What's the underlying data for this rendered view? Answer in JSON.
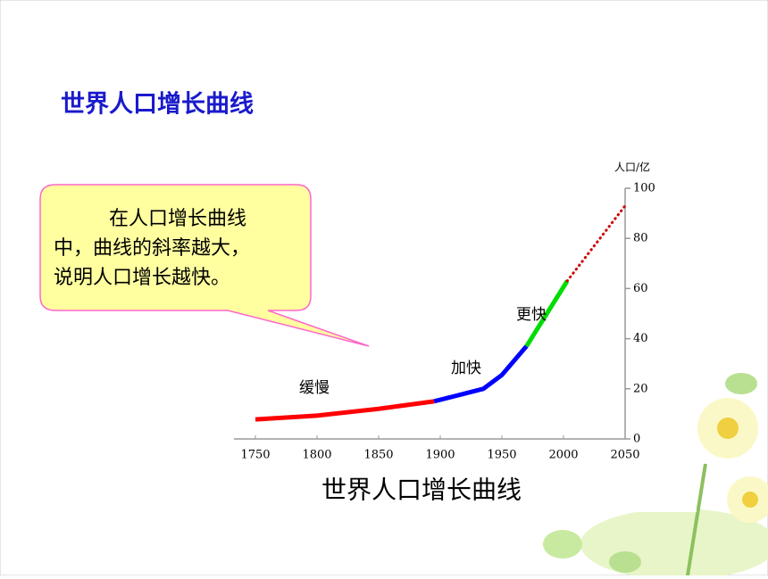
{
  "slide_title": "世界人口增长曲线",
  "callout": {
    "lines": [
      "在人口增长曲线",
      "中，曲线的斜率越大，",
      "说明人口增长越快。"
    ]
  },
  "chart_data": {
    "type": "line",
    "title": "世界人口增长曲线",
    "y_label": "人口/亿",
    "x": [
      1750,
      1800,
      1850,
      1895,
      1935,
      1950,
      1970,
      2003,
      2050
    ],
    "series": [
      {
        "name": "缓慢",
        "color": "#ff0000",
        "values": [
          7.8,
          9.3,
          12,
          15,
          null,
          null,
          null,
          null,
          null
        ]
      },
      {
        "name": "加快",
        "color": "#0000ff",
        "values": [
          null,
          null,
          null,
          15,
          20,
          25.5,
          37,
          null,
          null
        ]
      },
      {
        "name": "更快",
        "color": "#00dd00",
        "values": [
          null,
          null,
          null,
          null,
          null,
          null,
          37,
          63,
          null
        ]
      },
      {
        "color": "#cc0000",
        "dash": "dotted",
        "values": [
          null,
          null,
          null,
          null,
          null,
          null,
          null,
          63,
          93
        ]
      }
    ],
    "xlim": [
      1750,
      2050
    ],
    "xticks": [
      1750,
      1800,
      1850,
      1900,
      1950,
      2000,
      2050
    ],
    "ylim": [
      0,
      100
    ],
    "yticks": [
      0,
      20,
      40,
      60,
      80,
      100
    ]
  }
}
